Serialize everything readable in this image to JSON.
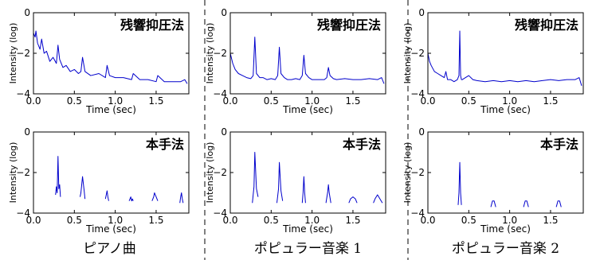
{
  "columns": [
    "ピアノ曲",
    "ポピュラー音楽 1",
    "ポピュラー音楽 2"
  ],
  "chart_data": [
    {
      "type": "line",
      "column": 0,
      "row": 0,
      "annotation": "残響抑圧法",
      "xlabel": "Time (sec)",
      "ylabel": "Intensity (log)",
      "xlim": [
        0,
        1.9
      ],
      "ylim": [
        -4,
        0
      ],
      "xticks": [
        "0.0",
        "0.5",
        "1.0",
        "1.5"
      ],
      "yticks": [
        "0",
        "−2",
        "−4"
      ],
      "series": [
        {
          "color": "#0000cc",
          "x": [
            0.0,
            0.02,
            0.03,
            0.05,
            0.08,
            0.1,
            0.13,
            0.16,
            0.2,
            0.24,
            0.28,
            0.3,
            0.32,
            0.36,
            0.4,
            0.45,
            0.5,
            0.55,
            0.58,
            0.6,
            0.63,
            0.7,
            0.8,
            0.88,
            0.9,
            0.93,
            1.0,
            1.1,
            1.2,
            1.22,
            1.3,
            1.4,
            1.5,
            1.52,
            1.6,
            1.7,
            1.8,
            1.85,
            1.88
          ],
          "y": [
            -1.0,
            -1.2,
            -0.9,
            -1.5,
            -1.8,
            -1.3,
            -2.0,
            -1.9,
            -2.4,
            -2.2,
            -2.5,
            -1.6,
            -2.3,
            -2.7,
            -2.6,
            -2.9,
            -2.8,
            -3.0,
            -2.9,
            -2.2,
            -2.9,
            -3.1,
            -3.0,
            -3.2,
            -2.6,
            -3.1,
            -3.2,
            -3.2,
            -3.3,
            -3.0,
            -3.3,
            -3.3,
            -3.4,
            -3.1,
            -3.4,
            -3.4,
            -3.4,
            -3.3,
            -3.5
          ]
        }
      ]
    },
    {
      "type": "line",
      "column": 1,
      "row": 0,
      "annotation": "残響抑圧法",
      "xlabel": "Time (sec)",
      "ylabel": "Intensity (log)",
      "xlim": [
        0,
        1.9
      ],
      "ylim": [
        -4,
        0
      ],
      "xticks": [
        "0.0",
        "0.5",
        "1.0",
        "1.5"
      ],
      "yticks": [
        "0",
        "−2",
        "−4"
      ],
      "series": [
        {
          "color": "#0000cc",
          "x": [
            0.0,
            0.03,
            0.06,
            0.1,
            0.15,
            0.2,
            0.25,
            0.28,
            0.3,
            0.32,
            0.36,
            0.4,
            0.45,
            0.5,
            0.55,
            0.58,
            0.6,
            0.62,
            0.66,
            0.7,
            0.75,
            0.8,
            0.85,
            0.88,
            0.9,
            0.92,
            0.96,
            1.0,
            1.05,
            1.1,
            1.15,
            1.18,
            1.2,
            1.22,
            1.26,
            1.3,
            1.4,
            1.5,
            1.6,
            1.7,
            1.8,
            1.85,
            1.88
          ],
          "y": [
            -2.0,
            -2.5,
            -2.8,
            -3.0,
            -3.1,
            -3.2,
            -3.25,
            -3.1,
            -1.2,
            -3.0,
            -3.2,
            -3.2,
            -3.3,
            -3.25,
            -3.3,
            -3.1,
            -1.7,
            -3.0,
            -3.2,
            -3.3,
            -3.3,
            -3.25,
            -3.3,
            -3.1,
            -2.1,
            -3.0,
            -3.2,
            -3.3,
            -3.3,
            -3.3,
            -3.3,
            -3.2,
            -2.7,
            -3.1,
            -3.25,
            -3.3,
            -3.25,
            -3.3,
            -3.3,
            -3.25,
            -3.3,
            -3.2,
            -3.5
          ]
        }
      ]
    },
    {
      "type": "line",
      "column": 2,
      "row": 0,
      "annotation": "残響抑圧法",
      "xlabel": "Time (sec)",
      "ylabel": "Intensity (log)",
      "xlim": [
        0,
        1.9
      ],
      "ylim": [
        -4,
        0
      ],
      "xticks": [
        "0.0",
        "0.5",
        "1.0",
        "1.5"
      ],
      "yticks": [
        "0",
        "−2",
        "−4"
      ],
      "series": [
        {
          "color": "#0000cc",
          "x": [
            0.0,
            0.02,
            0.04,
            0.08,
            0.12,
            0.16,
            0.2,
            0.22,
            0.24,
            0.28,
            0.32,
            0.36,
            0.38,
            0.39,
            0.4,
            0.41,
            0.42,
            0.46,
            0.5,
            0.55,
            0.6,
            0.7,
            0.8,
            0.9,
            1.0,
            1.1,
            1.2,
            1.3,
            1.4,
            1.5,
            1.6,
            1.7,
            1.8,
            1.85,
            1.88
          ],
          "y": [
            -2.0,
            -2.4,
            -2.6,
            -2.9,
            -3.0,
            -3.1,
            -3.2,
            -2.9,
            -3.3,
            -3.3,
            -3.4,
            -3.3,
            -3.1,
            -0.9,
            -3.1,
            -3.3,
            -3.3,
            -3.2,
            -3.1,
            -3.3,
            -3.35,
            -3.4,
            -3.35,
            -3.4,
            -3.35,
            -3.4,
            -3.35,
            -3.4,
            -3.35,
            -3.3,
            -3.35,
            -3.3,
            -3.3,
            -3.2,
            -3.6
          ]
        }
      ]
    },
    {
      "type": "line",
      "column": 0,
      "row": 1,
      "annotation": "本手法",
      "xlabel": "Time (sec)",
      "ylabel": "Intensity (log)",
      "xlim": [
        0,
        1.9
      ],
      "ylim": [
        -4,
        0
      ],
      "xticks": [
        "0.0",
        "0.5",
        "1.0",
        "1.5"
      ],
      "yticks": [
        "0",
        "−2",
        "−4"
      ],
      "series": [
        {
          "color": "#0000cc",
          "segments": [
            {
              "x": [
                0.27,
                0.28,
                0.29,
                0.3,
                0.31,
                0.32,
                0.33
              ],
              "y": [
                -3.1,
                -2.7,
                -3.0,
                -1.2,
                -2.8,
                -2.6,
                -3.2
              ]
            },
            {
              "x": [
                0.57,
                0.58,
                0.6,
                0.62,
                0.63
              ],
              "y": [
                -3.2,
                -3.0,
                -2.2,
                -2.9,
                -3.3
              ]
            },
            {
              "x": [
                0.88,
                0.89,
                0.9,
                0.91,
                0.92
              ],
              "y": [
                -3.3,
                -3.1,
                -2.9,
                -3.2,
                -3.4
              ]
            },
            {
              "x": [
                1.17,
                1.18,
                1.19,
                1.2,
                1.21,
                1.22
              ],
              "y": [
                -3.4,
                -3.3,
                -3.2,
                -3.4,
                -3.3,
                -3.4
              ]
            },
            {
              "x": [
                1.45,
                1.47,
                1.48,
                1.5,
                1.52
              ],
              "y": [
                -3.4,
                -3.2,
                -3.0,
                -3.2,
                -3.4
              ]
            },
            {
              "x": [
                1.79,
                1.8,
                1.81,
                1.82,
                1.83
              ],
              "y": [
                -3.5,
                -3.2,
                -3.0,
                -3.3,
                -3.5
              ]
            }
          ]
        }
      ]
    },
    {
      "type": "line",
      "column": 1,
      "row": 1,
      "annotation": "本手法",
      "xlabel": "Time (sec)",
      "ylabel": "Intensity (log)",
      "xlim": [
        0,
        1.9
      ],
      "ylim": [
        -4,
        0
      ],
      "xticks": [
        "0.0",
        "0.5",
        "1.0",
        "1.5"
      ],
      "yticks": [
        "0",
        "−2",
        "−4"
      ],
      "series": [
        {
          "color": "#0000cc",
          "segments": [
            {
              "x": [
                0.27,
                0.29,
                0.3,
                0.32,
                0.34
              ],
              "y": [
                -3.5,
                -2.7,
                -1.0,
                -2.8,
                -3.2
              ]
            },
            {
              "x": [
                0.57,
                0.59,
                0.6,
                0.62,
                0.64
              ],
              "y": [
                -3.5,
                -2.8,
                -1.5,
                -2.9,
                -3.4
              ]
            },
            {
              "x": [
                0.88,
                0.89,
                0.9,
                0.91,
                0.92
              ],
              "y": [
                -3.5,
                -3.0,
                -2.2,
                -3.0,
                -3.5
              ]
            },
            {
              "x": [
                1.17,
                1.19,
                1.2,
                1.21,
                1.23
              ],
              "y": [
                -3.5,
                -3.0,
                -2.6,
                -3.0,
                -3.5
              ]
            },
            {
              "x": [
                1.45,
                1.47,
                1.5,
                1.53,
                1.55
              ],
              "y": [
                -3.5,
                -3.3,
                -3.2,
                -3.3,
                -3.5
              ]
            },
            {
              "x": [
                1.75,
                1.77,
                1.8,
                1.83,
                1.86
              ],
              "y": [
                -3.5,
                -3.3,
                -3.1,
                -3.3,
                -3.5
              ]
            }
          ]
        }
      ]
    },
    {
      "type": "line",
      "column": 2,
      "row": 1,
      "annotation": "本手法",
      "xlabel": "Time (sec)",
      "ylabel": "Intensity (log)",
      "xlim": [
        0,
        1.9
      ],
      "ylim": [
        -4,
        0
      ],
      "xticks": [
        "0.0",
        "0.5",
        "1.0",
        "1.5"
      ],
      "yticks": [
        "0",
        "−2",
        "−4"
      ],
      "series": [
        {
          "color": "#0000cc",
          "segments": [
            {
              "x": [
                0.37,
                0.38,
                0.39,
                0.4,
                0.41
              ],
              "y": [
                -3.6,
                -3.0,
                -1.5,
                -3.0,
                -3.6
              ]
            },
            {
              "x": [
                0.77,
                0.79,
                0.81,
                0.83
              ],
              "y": [
                -3.7,
                -3.4,
                -3.4,
                -3.7
              ]
            },
            {
              "x": [
                1.17,
                1.19,
                1.21,
                1.23
              ],
              "y": [
                -3.7,
                -3.4,
                -3.4,
                -3.7
              ]
            },
            {
              "x": [
                1.57,
                1.59,
                1.61,
                1.63
              ],
              "y": [
                -3.7,
                -3.4,
                -3.4,
                -3.7
              ]
            }
          ]
        }
      ]
    }
  ]
}
